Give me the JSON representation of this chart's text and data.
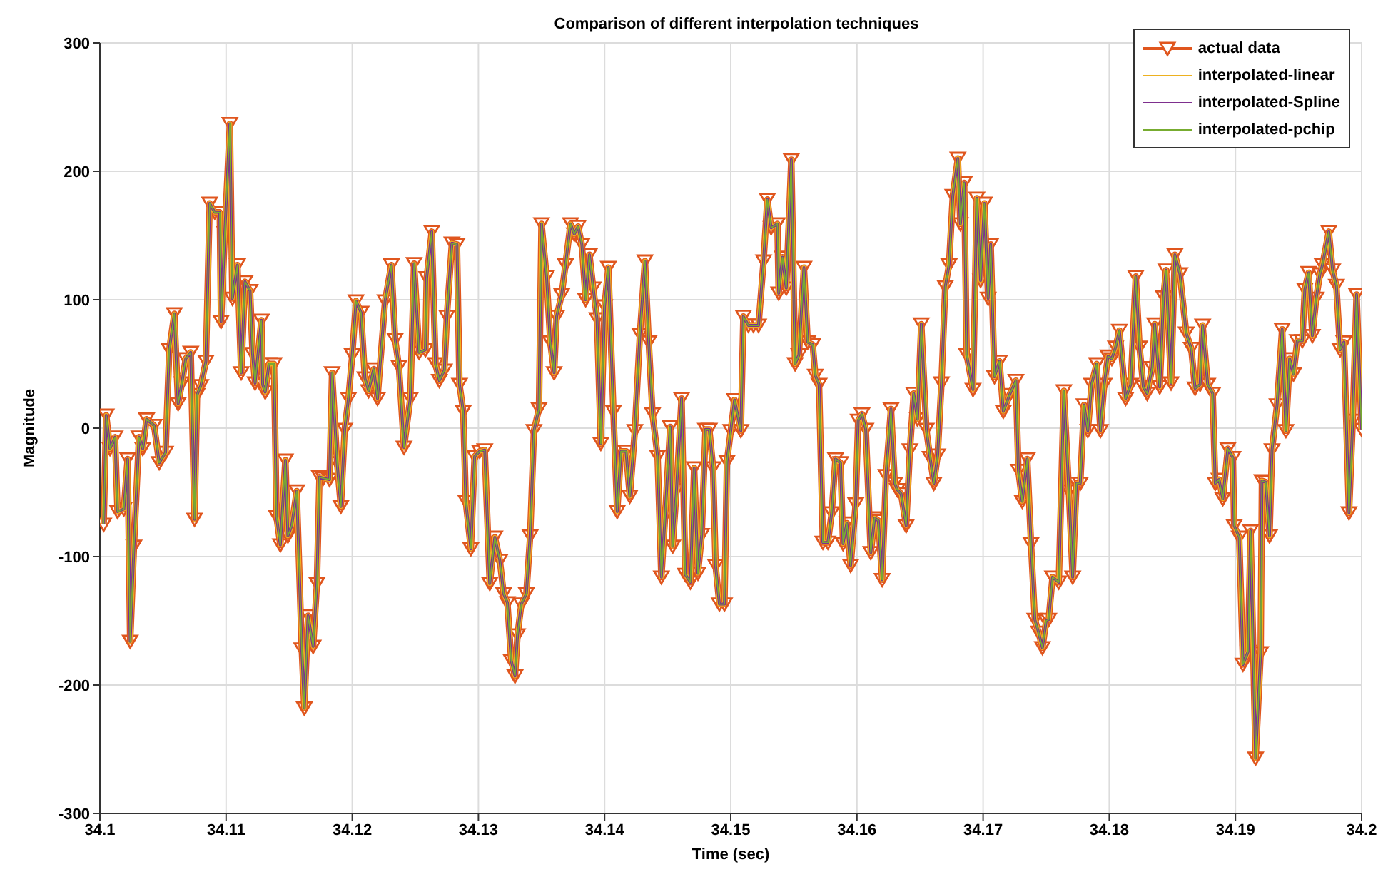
{
  "chart_data": {
    "type": "line",
    "title": "Comparison of different interpolation techniques",
    "xlabel": "Time (sec)",
    "ylabel": "Magnitude",
    "x": [
      34.1003,
      34.1005,
      34.1008,
      34.1012,
      34.1014,
      34.1019,
      34.1022,
      34.1024,
      34.1027,
      34.1031,
      34.1034,
      34.1037,
      34.1043,
      34.1047,
      34.1052,
      34.1055,
      34.1059,
      34.1062,
      34.1065,
      34.1068,
      34.1072,
      34.1075,
      34.1077,
      34.108,
      34.1084,
      34.1087,
      34.1091,
      34.1095,
      34.1096,
      34.1099,
      34.1103,
      34.1105,
      34.1109,
      34.1112,
      34.1115,
      34.1119,
      34.1121,
      34.1123,
      34.1128,
      34.1129,
      34.1131,
      34.1134,
      34.1138,
      34.114,
      34.1143,
      34.1147,
      34.1149,
      34.1152,
      34.1156,
      34.116,
      34.1162,
      34.1165,
      34.1169,
      34.1172,
      34.1174,
      34.1177,
      34.1182,
      34.1184,
      34.1188,
      34.1191,
      34.1194,
      34.1197,
      34.12,
      34.1203,
      34.1207,
      34.121,
      34.1213,
      34.1217,
      34.122,
      34.1226,
      34.1231,
      34.1234,
      34.1237,
      34.1241,
      34.1246,
      34.1249,
      34.1253,
      34.1258,
      34.1259,
      34.1263,
      34.1266,
      34.1269,
      34.1273,
      34.1275,
      34.1279,
      34.1283,
      34.1285,
      34.1288,
      34.129,
      34.1294,
      34.1297,
      34.1301,
      34.1305,
      34.1309,
      34.1313,
      34.1317,
      34.132,
      34.1323,
      34.1326,
      34.1329,
      34.1331,
      34.1334,
      34.1338,
      34.1341,
      34.1344,
      34.1348,
      34.135,
      34.1354,
      34.1357,
      34.136,
      34.1362,
      34.1366,
      34.1369,
      34.1373,
      34.1376,
      34.1379,
      34.1382,
      34.1385,
      34.1388,
      34.1391,
      34.1394,
      34.1397,
      34.14,
      34.1403,
      34.1407,
      34.141,
      34.1413,
      34.1417,
      34.142,
      34.1424,
      34.1428,
      34.1432,
      34.1435,
      34.1438,
      34.1442,
      34.1445,
      34.1448,
      34.1452,
      34.1454,
      34.1457,
      34.1461,
      34.1464,
      34.1468,
      34.1471,
      34.1474,
      34.1477,
      34.148,
      34.1483,
      34.1486,
      34.1488,
      34.1491,
      34.1495,
      34.1497,
      34.15,
      34.1503,
      34.1508,
      34.151,
      34.1514,
      34.1518,
      34.1522,
      34.1526,
      34.1529,
      34.1532,
      34.1537,
      34.1538,
      34.1541,
      34.1544,
      34.1548,
      34.1551,
      34.1554,
      34.1558,
      34.1561,
      34.1565,
      34.1567,
      34.157,
      34.1573,
      34.1577,
      34.158,
      34.1583,
      34.1587,
      34.1589,
      34.1592,
      34.1595,
      34.1599,
      34.1601,
      34.1604,
      34.1607,
      34.1611,
      34.1614,
      34.1617,
      34.162,
      34.1623,
      34.1627,
      34.163,
      34.1632,
      34.1635,
      34.1639,
      34.1642,
      34.1645,
      34.1648,
      34.1651,
      34.1655,
      34.1658,
      34.1661,
      34.1664,
      34.1667,
      34.167,
      34.1673,
      34.1676,
      34.168,
      34.1682,
      34.1685,
      34.1687,
      34.1692,
      34.1695,
      34.1698,
      34.1701,
      34.1704,
      34.1706,
      34.1709,
      34.1713,
      34.1716,
      34.1721,
      34.1726,
      34.1728,
      34.1731,
      34.1735,
      34.1738,
      34.1741,
      34.1744,
      34.1747,
      34.175,
      34.1752,
      34.1755,
      34.176,
      34.1764,
      34.1768,
      34.1771,
      34.1774,
      34.1777,
      34.178,
      34.1783,
      34.1786,
      34.179,
      34.1793,
      34.1796,
      34.1799,
      34.1802,
      34.1805,
      34.1808,
      34.1813,
      34.1817,
      34.1821,
      34.1824,
      34.1827,
      34.183,
      34.1834,
      34.1836,
      34.184,
      34.1843,
      34.1845,
      34.1849,
      34.1852,
      34.1856,
      34.1861,
      34.1865,
      34.1868,
      34.1872,
      34.1874,
      34.1878,
      34.1882,
      34.1884,
      34.1887,
      34.189,
      34.1894,
      34.1898,
      34.1899,
      34.1903,
      34.1906,
      34.191,
      34.1912,
      34.1916,
      34.192,
      34.1921,
      34.1924,
      34.1927,
      34.1929,
      34.1933,
      34.1937,
      34.194,
      34.1943,
      34.1946,
      34.1949,
      34.1953,
      34.1955,
      34.1958,
      34.1961,
      34.1964,
      34.1967,
      34.1969,
      34.1974,
      34.1977,
      34.198,
      34.1983,
      34.1986,
      34.199,
      34.1993,
      34.1996,
      34.2
    ],
    "series": [
      {
        "name": "actual data",
        "color": "#e0561e",
        "marker": "triangle",
        "values": [
          -75,
          10,
          -16,
          -7,
          -65,
          -63,
          -24,
          -166,
          -92,
          -7,
          -16,
          7,
          2,
          -27,
          -19,
          61,
          89,
          19,
          35,
          54,
          59,
          -71,
          26,
          33,
          52,
          175,
          168,
          168,
          83,
          152,
          237,
          101,
          127,
          43,
          114,
          107,
          58,
          35,
          84,
          34,
          28,
          50,
          50,
          -69,
          -91,
          -25,
          -84,
          -76,
          -49,
          -172,
          -218,
          -146,
          -170,
          -121,
          -38,
          -39,
          -40,
          43,
          -27,
          -61,
          -1,
          23,
          57,
          99,
          90,
          39,
          29,
          46,
          23,
          99,
          127,
          69,
          48,
          -15,
          23,
          128,
          59,
          61,
          117,
          153,
          50,
          37,
          45,
          87,
          144,
          143,
          34,
          13,
          -57,
          -94,
          -22,
          -18,
          -17,
          -121,
          -85,
          -103,
          -129,
          -136,
          -181,
          -193,
          -161,
          -137,
          -129,
          -84,
          -2,
          15,
          159,
          118,
          67,
          43,
          87,
          104,
          127,
          159,
          151,
          157,
          143,
          100,
          135,
          109,
          85,
          -12,
          95,
          125,
          13,
          -65,
          -18,
          -18,
          -53,
          -2,
          73,
          130,
          67,
          11,
          -22,
          -116,
          -68,
          1,
          -92,
          -48,
          23,
          -114,
          -120,
          -31,
          -113,
          -83,
          -1,
          -1,
          -31,
          -107,
          -137,
          -137,
          -26,
          -2,
          22,
          -2,
          87,
          80,
          80,
          80,
          130,
          178,
          156,
          159,
          105,
          133,
          109,
          209,
          50,
          57,
          125,
          67,
          65,
          41,
          34,
          -89,
          -89,
          -66,
          -24,
          -27,
          -90,
          -74,
          -107,
          -59,
          6,
          11,
          -1,
          -97,
          -70,
          -72,
          -118,
          -37,
          15,
          -43,
          -48,
          -51,
          -76,
          -17,
          27,
          7,
          81,
          -1,
          -23,
          -43,
          -21,
          35,
          110,
          127,
          181,
          210,
          159,
          191,
          57,
          30,
          179,
          115,
          175,
          101,
          143,
          40,
          52,
          13,
          26,
          37,
          -33,
          -57,
          -24,
          -90,
          -149,
          -159,
          -171,
          -150,
          -149,
          -116,
          -120,
          29,
          -49,
          -116,
          -43,
          -43,
          18,
          -2,
          34,
          50,
          -2,
          34,
          56,
          54,
          63,
          76,
          23,
          34,
          118,
          63,
          32,
          27,
          47,
          81,
          32,
          102,
          123,
          35,
          135,
          120,
          74,
          62,
          31,
          34,
          80,
          34,
          27,
          -43,
          -40,
          -55,
          -16,
          -23,
          -76,
          -85,
          -184,
          -174,
          -80,
          -257,
          -175,
          -41,
          -42,
          -84,
          -17,
          18,
          77,
          -2,
          54,
          42,
          68,
          68,
          108,
          121,
          72,
          101,
          120,
          127,
          153,
          123,
          111,
          61,
          67,
          -66,
          6,
          104,
          -1
        ]
      },
      {
        "name": "interpolated-linear",
        "color": "#edb120",
        "marker": "none",
        "values": [
          -75,
          10,
          -16,
          -7,
          -65,
          -63,
          -24,
          -166,
          -92,
          -7,
          -16,
          7,
          2,
          -27,
          -19,
          61,
          89,
          19,
          35,
          54,
          59,
          -71,
          26,
          33,
          52,
          175,
          168,
          168,
          83,
          152,
          237,
          101,
          127,
          43,
          114,
          107,
          58,
          35,
          84,
          34,
          28,
          50,
          50,
          -69,
          -91,
          -25,
          -84,
          -76,
          -49,
          -172,
          -218,
          -146,
          -170,
          -121,
          -38,
          -39,
          -40,
          43,
          -27,
          -61,
          -1,
          23,
          57,
          99,
          90,
          39,
          29,
          46,
          23,
          99,
          127,
          69,
          48,
          -15,
          23,
          128,
          59,
          61,
          117,
          153,
          50,
          37,
          45,
          87,
          144,
          143,
          34,
          13,
          -57,
          -94,
          -22,
          -18,
          -17,
          -121,
          -85,
          -103,
          -129,
          -136,
          -181,
          -193,
          -161,
          -137,
          -129,
          -84,
          -2,
          15,
          159,
          118,
          67,
          43,
          87,
          104,
          127,
          159,
          151,
          157,
          143,
          100,
          135,
          109,
          85,
          -12,
          95,
          125,
          13,
          -65,
          -18,
          -18,
          -53,
          -2,
          73,
          130,
          67,
          11,
          -22,
          -116,
          -68,
          1,
          -92,
          -48,
          23,
          -114,
          -120,
          -31,
          -113,
          -83,
          -1,
          -1,
          -31,
          -107,
          -137,
          -137,
          -26,
          -2,
          22,
          -2,
          87,
          80,
          80,
          80,
          130,
          178,
          156,
          159,
          105,
          133,
          109,
          209,
          50,
          57,
          125,
          67,
          65,
          41,
          34,
          -89,
          -89,
          -66,
          -24,
          -27,
          -90,
          -74,
          -107,
          -59,
          6,
          11,
          -1,
          -97,
          -70,
          -72,
          -118,
          -37,
          15,
          -43,
          -48,
          -51,
          -76,
          -17,
          27,
          7,
          81,
          -1,
          -23,
          -43,
          -21,
          35,
          110,
          127,
          181,
          210,
          159,
          191,
          57,
          30,
          179,
          115,
          175,
          101,
          143,
          40,
          52,
          13,
          26,
          37,
          -33,
          -57,
          -24,
          -90,
          -149,
          -159,
          -171,
          -150,
          -149,
          -116,
          -120,
          29,
          -49,
          -116,
          -43,
          -43,
          18,
          -2,
          34,
          50,
          -2,
          34,
          56,
          54,
          63,
          76,
          23,
          34,
          118,
          63,
          32,
          27,
          47,
          81,
          32,
          102,
          123,
          35,
          135,
          120,
          74,
          62,
          31,
          34,
          80,
          34,
          27,
          -43,
          -40,
          -55,
          -16,
          -23,
          -76,
          -85,
          -184,
          -174,
          -80,
          -257,
          -175,
          -41,
          -42,
          -84,
          -17,
          18,
          77,
          -2,
          54,
          42,
          68,
          68,
          108,
          121,
          72,
          101,
          120,
          127,
          153,
          123,
          111,
          61,
          67,
          -66,
          6,
          104,
          -1
        ]
      },
      {
        "name": "interpolated-Spline",
        "color": "#7e2f8e",
        "marker": "none",
        "values": [
          -75,
          10,
          -16,
          -7,
          -65,
          -63,
          -24,
          -166,
          -92,
          -7,
          -16,
          7,
          2,
          -27,
          -19,
          61,
          89,
          19,
          35,
          54,
          59,
          -71,
          26,
          33,
          52,
          175,
          168,
          168,
          83,
          152,
          237,
          101,
          127,
          43,
          114,
          107,
          58,
          35,
          84,
          34,
          28,
          50,
          50,
          -69,
          -91,
          -25,
          -84,
          -76,
          -49,
          -172,
          -218,
          -146,
          -170,
          -121,
          -38,
          -39,
          -40,
          43,
          -27,
          -61,
          -1,
          23,
          57,
          99,
          90,
          39,
          29,
          46,
          23,
          99,
          127,
          69,
          48,
          -15,
          23,
          128,
          59,
          61,
          117,
          153,
          50,
          37,
          45,
          87,
          144,
          143,
          34,
          13,
          -57,
          -94,
          -22,
          -18,
          -17,
          -121,
          -85,
          -103,
          -129,
          -136,
          -181,
          -193,
          -161,
          -137,
          -129,
          -84,
          -2,
          15,
          159,
          118,
          67,
          43,
          87,
          104,
          127,
          159,
          151,
          157,
          143,
          100,
          135,
          109,
          85,
          -12,
          95,
          125,
          13,
          -65,
          -18,
          -18,
          -53,
          -2,
          73,
          130,
          67,
          11,
          -22,
          -116,
          -68,
          1,
          -92,
          -48,
          23,
          -114,
          -120,
          -31,
          -113,
          -83,
          -1,
          -1,
          -31,
          -107,
          -137,
          -137,
          -26,
          -2,
          22,
          -2,
          87,
          80,
          80,
          80,
          130,
          178,
          156,
          159,
          105,
          133,
          109,
          209,
          50,
          57,
          125,
          67,
          65,
          41,
          34,
          -89,
          -89,
          -66,
          -24,
          -27,
          -90,
          -74,
          -107,
          -59,
          6,
          11,
          -1,
          -97,
          -70,
          -72,
          -118,
          -37,
          15,
          -43,
          -48,
          -51,
          -76,
          -17,
          27,
          7,
          81,
          -1,
          -23,
          -43,
          -21,
          35,
          110,
          127,
          181,
          210,
          159,
          191,
          57,
          30,
          179,
          115,
          175,
          101,
          143,
          40,
          52,
          13,
          26,
          37,
          -33,
          -57,
          -24,
          -90,
          -149,
          -159,
          -171,
          -150,
          -149,
          -116,
          -120,
          29,
          -49,
          -116,
          -43,
          -43,
          18,
          -2,
          34,
          50,
          -2,
          34,
          56,
          54,
          63,
          76,
          23,
          34,
          118,
          63,
          32,
          27,
          47,
          81,
          32,
          102,
          123,
          35,
          135,
          120,
          74,
          62,
          31,
          34,
          80,
          34,
          27,
          -43,
          -40,
          -55,
          -16,
          -23,
          -76,
          -85,
          -184,
          -174,
          -80,
          -257,
          -175,
          -41,
          -42,
          -84,
          -17,
          18,
          77,
          -2,
          54,
          42,
          68,
          68,
          108,
          121,
          72,
          101,
          120,
          127,
          153,
          123,
          111,
          61,
          67,
          -66,
          6,
          104,
          -1
        ]
      },
      {
        "name": "interpolated-pchip",
        "color": "#77ac30",
        "marker": "none",
        "values": [
          -75,
          10,
          -16,
          -7,
          -65,
          -63,
          -24,
          -166,
          -92,
          -7,
          -16,
          7,
          2,
          -27,
          -19,
          61,
          89,
          19,
          35,
          54,
          59,
          -71,
          26,
          33,
          52,
          175,
          168,
          168,
          83,
          152,
          237,
          101,
          127,
          43,
          114,
          107,
          58,
          35,
          84,
          34,
          28,
          50,
          50,
          -69,
          -91,
          -25,
          -84,
          -76,
          -49,
          -172,
          -218,
          -146,
          -170,
          -121,
          -38,
          -39,
          -40,
          43,
          -27,
          -61,
          -1,
          23,
          57,
          99,
          90,
          39,
          29,
          46,
          23,
          99,
          127,
          69,
          48,
          -15,
          23,
          128,
          59,
          61,
          117,
          153,
          50,
          37,
          45,
          87,
          144,
          143,
          34,
          13,
          -57,
          -94,
          -22,
          -18,
          -17,
          -121,
          -85,
          -103,
          -129,
          -136,
          -181,
          -193,
          -161,
          -137,
          -129,
          -84,
          -2,
          15,
          159,
          118,
          67,
          43,
          87,
          104,
          127,
          159,
          151,
          157,
          143,
          100,
          135,
          109,
          85,
          -12,
          95,
          125,
          13,
          -65,
          -18,
          -18,
          -53,
          -2,
          73,
          130,
          67,
          11,
          -22,
          -116,
          -68,
          1,
          -92,
          -48,
          23,
          -114,
          -120,
          -31,
          -113,
          -83,
          -1,
          -1,
          -31,
          -107,
          -137,
          -137,
          -26,
          -2,
          22,
          -2,
          87,
          80,
          80,
          80,
          130,
          178,
          156,
          159,
          105,
          133,
          109,
          209,
          50,
          57,
          125,
          67,
          65,
          41,
          34,
          -89,
          -89,
          -66,
          -24,
          -27,
          -90,
          -74,
          -107,
          -59,
          6,
          11,
          -1,
          -97,
          -70,
          -72,
          -118,
          -37,
          15,
          -43,
          -48,
          -51,
          -76,
          -17,
          27,
          7,
          81,
          -1,
          -23,
          -43,
          -21,
          35,
          110,
          127,
          181,
          210,
          159,
          191,
          57,
          30,
          179,
          115,
          175,
          101,
          143,
          40,
          52,
          13,
          26,
          37,
          -33,
          -57,
          -24,
          -90,
          -149,
          -159,
          -171,
          -150,
          -149,
          -116,
          -120,
          29,
          -49,
          -116,
          -43,
          -43,
          18,
          -2,
          34,
          50,
          -2,
          34,
          56,
          54,
          63,
          76,
          23,
          34,
          118,
          63,
          32,
          27,
          47,
          81,
          32,
          102,
          123,
          35,
          135,
          120,
          74,
          62,
          31,
          34,
          80,
          34,
          27,
          -43,
          -40,
          -55,
          -16,
          -23,
          -76,
          -85,
          -184,
          -174,
          -80,
          -257,
          -175,
          -41,
          -42,
          -84,
          -17,
          18,
          77,
          -2,
          54,
          42,
          68,
          68,
          108,
          121,
          72,
          101,
          120,
          127,
          153,
          123,
          111,
          61,
          67,
          -66,
          6,
          104,
          -1
        ]
      }
    ],
    "xlim": [
      34.1,
      34.2
    ],
    "xticks": [
      34.1,
      34.11,
      34.12,
      34.13,
      34.14,
      34.15,
      34.16,
      34.17,
      34.18,
      34.19,
      34.2
    ],
    "ylim": [
      -300,
      300
    ],
    "yticks": [
      -300,
      -200,
      -100,
      0,
      100,
      200,
      300
    ],
    "grid": true,
    "legend": "top right",
    "line_style": "solid"
  }
}
